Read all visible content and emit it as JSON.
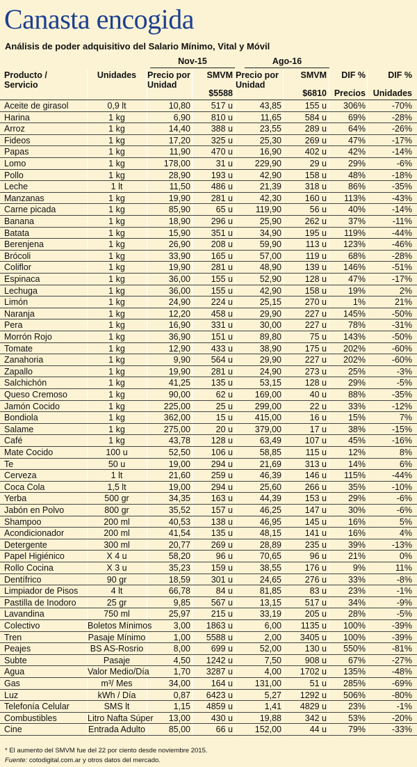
{
  "title": "Canasta encogida",
  "subtitle": "Análisis de poder adquisitivo del Salario Mínimo, Vital y Móvil",
  "table": {
    "group_headers": [
      "Nov-15",
      "Ago-16"
    ],
    "headers": [
      [
        "Producto /",
        "Servicio"
      ],
      [
        "Unidades"
      ],
      [
        "Precio por",
        "Unidad"
      ],
      [
        "SMVM"
      ],
      [
        "Precio por",
        "Unidad"
      ],
      [
        "SMVM"
      ],
      [
        "DIF %"
      ],
      [
        "DIF %"
      ]
    ],
    "subheaders": [
      "$5588",
      "$6810",
      "Precios",
      "Unidades"
    ],
    "rows": [
      [
        "Aceite de girasol",
        "0,9 lt",
        "10,80",
        "517 u",
        "43,85",
        "155 u",
        "306%",
        "-70%"
      ],
      [
        "Harina",
        "1 kg",
        "6,90",
        "810 u",
        "11,65",
        "584 u",
        "69%",
        "-28%"
      ],
      [
        "Arroz",
        "1 kg",
        "14,40",
        "388 u",
        "23,55",
        "289 u",
        "64%",
        "-26%"
      ],
      [
        "Fideos",
        "1 kg",
        "17,20",
        "325 u",
        "25,30",
        "269 u",
        "47%",
        "-17%"
      ],
      [
        "Papas",
        "1 kg",
        "11,90",
        "470 u",
        "16,90",
        "402 u",
        "42%",
        "-14%"
      ],
      [
        "Lomo",
        "1 kg",
        "178,00",
        "31 u",
        "229,90",
        "29 u",
        "29%",
        "-6%"
      ],
      [
        "Pollo",
        "1 kg",
        "28,90",
        "193 u",
        "42,90",
        "158 u",
        "48%",
        "-18%"
      ],
      [
        "Leche",
        "1 lt",
        "11,50",
        "486 u",
        "21,39",
        "318 u",
        "86%",
        "-35%"
      ],
      [
        "Manzanas",
        "1 kg",
        "19,90",
        "281 u",
        "42,30",
        "160 u",
        "113%",
        "-43%"
      ],
      [
        "Carne picada",
        "1 kg",
        "85,90",
        "65 u",
        "119,90",
        "56 u",
        "40%",
        "-14%"
      ],
      [
        "Banana",
        "1 kg",
        "18,90",
        "296 u",
        "25,90",
        "262 u",
        "37%",
        "-11%"
      ],
      [
        "Batata",
        "1 kg",
        "15,90",
        "351 u",
        "34,90",
        "195 u",
        "119%",
        "-44%"
      ],
      [
        "Berenjena",
        "1 kg",
        "26,90",
        "208 u",
        "59,90",
        "113 u",
        "123%",
        "-46%"
      ],
      [
        "Brócoli",
        "1 kg",
        "33,90",
        "165 u",
        "57,00",
        "119 u",
        "68%",
        "-28%"
      ],
      [
        "Coliflor",
        "1 kg",
        "19,90",
        "281 u",
        "48,90",
        "139 u",
        "146%",
        "-51%"
      ],
      [
        "Espinaca",
        "1 kg",
        "36,00",
        "155 u",
        "52,90",
        "128 u",
        "47%",
        "-17%"
      ],
      [
        "Lechuga",
        "1 kg",
        "36,00",
        "155 u",
        "42,90",
        "158 u",
        "19%",
        "2%"
      ],
      [
        "Limón",
        "1 kg",
        "24,90",
        "224 u",
        "25,15",
        "270 u",
        "1%",
        "21%"
      ],
      [
        "Naranja",
        "1 kg",
        "12,20",
        "458 u",
        "29,90",
        "227 u",
        "145%",
        "-50%"
      ],
      [
        "Pera",
        "1 kg",
        "16,90",
        "331 u",
        "30,00",
        "227 u",
        "78%",
        "-31%"
      ],
      [
        "Morrón Rojo",
        "1 kg",
        "36,90",
        "151 u",
        "89,80",
        "75 u",
        "143%",
        "-50%"
      ],
      [
        "Tomate",
        "1 kg",
        "12,90",
        "433 u",
        "38,90",
        "175 u",
        "202%",
        "-60%"
      ],
      [
        "Zanahoria",
        "1 kg",
        "9,90",
        "564 u",
        "29,90",
        "227 u",
        "202%",
        "-60%"
      ],
      [
        "Zapallo",
        "1 kg",
        "19,90",
        "281 u",
        "24,90",
        "273 u",
        "25%",
        "-3%"
      ],
      [
        "Salchichón",
        "1 kg",
        "41,25",
        "135 u",
        "53,15",
        "128 u",
        "29%",
        "-5%"
      ],
      [
        "Queso Cremoso",
        "1 kg",
        "90,00",
        "62 u",
        "169,00",
        "40 u",
        "88%",
        "-35%"
      ],
      [
        "Jamón Cocido",
        "1 kg",
        "225,00",
        "25 u",
        "299,00",
        "22 u",
        "33%",
        "-12%"
      ],
      [
        "Bondiola",
        "1 kg",
        "362,00",
        "15 u",
        "415,00",
        "16 u",
        "15%",
        "7%"
      ],
      [
        "Salame",
        "1 kg",
        "275,00",
        "20 u",
        "379,00",
        "17 u",
        "38%",
        "-15%"
      ],
      [
        "Café",
        "1 kg",
        "43,78",
        "128 u",
        "63,49",
        "107 u",
        "45%",
        "-16%"
      ],
      [
        "Mate Cocido",
        "100 u",
        "52,50",
        "106 u",
        "58,85",
        "115 u",
        "12%",
        "8%"
      ],
      [
        "Te",
        "50 u",
        "19,00",
        "294 u",
        "21,69",
        "313 u",
        "14%",
        "6%"
      ],
      [
        "Cerveza",
        "1 lt",
        "21,60",
        "259 u",
        "46,39",
        "146 u",
        "115%",
        "-44%"
      ],
      [
        "Coca Cola",
        "1,5 lt",
        "19,00",
        "294 u",
        "25,60",
        "266 u",
        "35%",
        "-10%"
      ],
      [
        "Yerba",
        "500 gr",
        "34,35",
        "163 u",
        "44,39",
        "153 u",
        "29%",
        "-6%"
      ],
      [
        "Jabón en Polvo",
        "800 gr",
        "35,52",
        "157 u",
        "46,25",
        "147 u",
        "30%",
        "-6%"
      ],
      [
        "Shampoo",
        "200 ml",
        "40,53",
        "138 u",
        "46,95",
        "145 u",
        "16%",
        "5%"
      ],
      [
        "Acondicionador",
        "200 ml",
        "41,54",
        "135 u",
        "48,15",
        "141 u",
        "16%",
        "4%"
      ],
      [
        "Detergente",
        "300 ml",
        "20,77",
        "269 u",
        "28,89",
        "235 u",
        "39%",
        "-13%"
      ],
      [
        "Papel Higiénico",
        "X 4 u",
        "58,20",
        "96 u",
        "70,65",
        "96 u",
        "21%",
        "0%"
      ],
      [
        "Rollo Cocina",
        "X 3 u",
        "35,23",
        "159 u",
        "38,55",
        "176 u",
        "9%",
        "11%"
      ],
      [
        "Dentífrico",
        "90 gr",
        "18,59",
        "301 u",
        "24,65",
        "276 u",
        "33%",
        "-8%"
      ],
      [
        "Limpiador de Pisos",
        "4 lt",
        "66,78",
        "84 u",
        "81,85",
        "83 u",
        "23%",
        "-1%"
      ],
      [
        "Pastilla de Inodoro",
        "25 gr",
        "9,85",
        "567 u",
        "13,15",
        "517 u",
        "34%",
        "-9%"
      ],
      [
        "Lavandina",
        "750 ml",
        "25,97",
        "215 u",
        "33,19",
        "205 u",
        "28%",
        "-5%"
      ],
      [
        "Colectivo",
        "Boletos Mínimos",
        "3,00",
        "1863 u",
        "6,00",
        "1135 u",
        "100%",
        "-39%"
      ],
      [
        "Tren",
        "Pasaje Mínimo",
        "1,00",
        "5588 u",
        "2,00",
        "3405 u",
        "100%",
        "-39%"
      ],
      [
        "Peajes",
        "BS AS-Rosrio",
        "8,00",
        "699 u",
        "52,00",
        "130 u",
        "550%",
        "-81%"
      ],
      [
        "Subte",
        "Pasaje",
        "4,50",
        "1242 u",
        "7,50",
        "908 u",
        "67%",
        "-27%"
      ],
      [
        "Agua",
        "Valor Medio/Día",
        "1,70",
        "3287 u",
        "4,00",
        "1702 u",
        "135%",
        "-48%"
      ],
      [
        "Gas",
        "m³/ Mes",
        "34,00",
        "164 u",
        "131,00",
        "51 u",
        "285%",
        "-69%"
      ],
      [
        "Luz",
        "kWh / Día",
        "0,87",
        "6423 u",
        "5,27",
        "1292 u",
        "506%",
        "-80%"
      ],
      [
        "Telefonía Celular",
        "SMS lt",
        "1,15",
        "4859 u",
        "1,41",
        "4829 u",
        "23%",
        "-1%"
      ],
      [
        "Combustibles",
        "Litro Nafta Súper",
        "13,00",
        "430 u",
        "19,88",
        "342 u",
        "53%",
        "-20%"
      ],
      [
        "Cine",
        "Entrada Adulto",
        "85,00",
        "66 u",
        "152,00",
        "44 u",
        "79%",
        "-33%"
      ]
    ]
  },
  "footer": {
    "note": "* El aumento del SMVM fue del 22 por ciento desde noviembre 2015.",
    "source_label": "Fuente:",
    "source": "cotodigital.com.ar y otros datos del mercado."
  }
}
